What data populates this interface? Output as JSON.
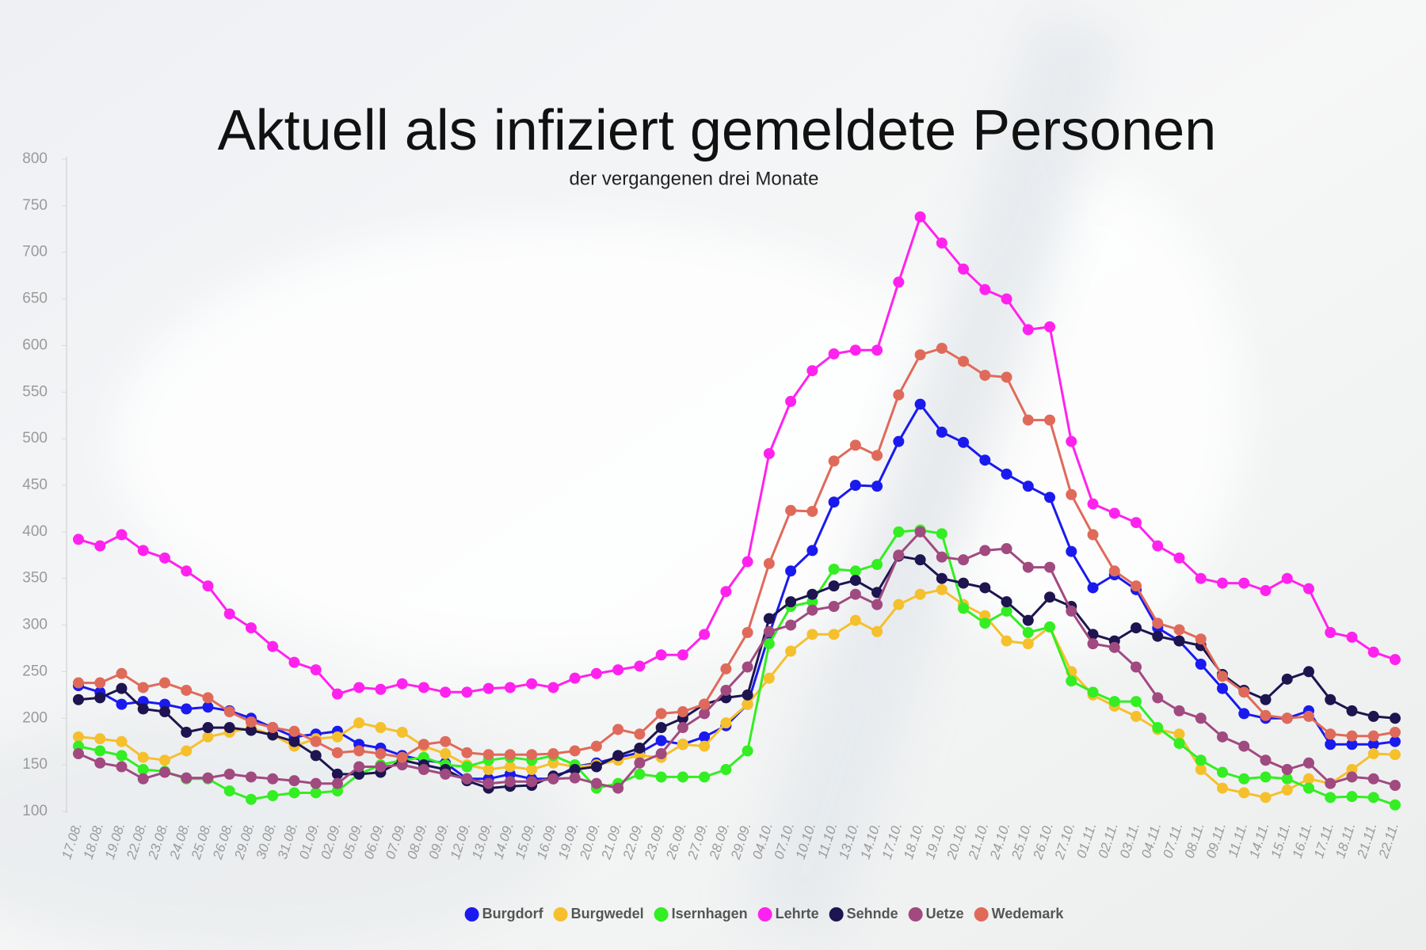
{
  "chart_data": {
    "type": "line",
    "title": "Aktuell als infiziert gemeldete Personen",
    "subtitle": "der vergangenen drei Monate",
    "categories": [
      "17.08.",
      "18.08.",
      "19.08.",
      "22.08.",
      "23.08.",
      "24.08.",
      "25.08.",
      "26.08.",
      "29.08.",
      "30.08.",
      "31.08.",
      "01.09.",
      "02.09.",
      "05.09.",
      "06.09.",
      "07.09.",
      "08.09.",
      "09.09.",
      "12.09.",
      "13.09.",
      "14.09.",
      "15.09.",
      "16.09.",
      "19.09.",
      "20.09.",
      "21.09.",
      "22.09.",
      "23.09.",
      "26.09.",
      "27.09.",
      "28.09.",
      "29.09.",
      "04.10.",
      "07.10.",
      "10.10.",
      "11.10.",
      "13.10.",
      "14.10.",
      "17.10.",
      "18.10.",
      "19.10.",
      "20.10.",
      "21.10.",
      "24.10.",
      "25.10.",
      "26.10.",
      "27.10.",
      "01.11.",
      "02.11.",
      "03.11.",
      "04.11.",
      "07.11.",
      "08.11.",
      "09.11.",
      "11.11.",
      "14.11.",
      "15.11.",
      "16.11.",
      "17.11.",
      "18.11.",
      "21.11.",
      "22.11."
    ],
    "series": [
      {
        "name": "Burgdorf",
        "color": "#1a1aee",
        "values": [
          235,
          228,
          215,
          218,
          215,
          210,
          212,
          208,
          200,
          190,
          180,
          183,
          186,
          172,
          168,
          160,
          155,
          152,
          135,
          135,
          140,
          135,
          135,
          148,
          152,
          158,
          163,
          176,
          172,
          180,
          192,
          215,
          290,
          358,
          380,
          432,
          450,
          449,
          497,
          537,
          507,
          496,
          477,
          462,
          449,
          437,
          379,
          340,
          354,
          338,
          297,
          283,
          258,
          232,
          205,
          200,
          200,
          208,
          172,
          172,
          172,
          175
        ]
      },
      {
        "name": "Burgwedel",
        "color": "#f5c02c",
        "values": [
          180,
          178,
          175,
          158,
          155,
          165,
          180,
          185,
          190,
          182,
          170,
          178,
          180,
          195,
          190,
          185,
          170,
          162,
          150,
          145,
          148,
          145,
          152,
          148,
          150,
          155,
          160,
          158,
          172,
          170,
          195,
          215,
          243,
          272,
          290,
          290,
          305,
          293,
          322,
          333,
          338,
          322,
          310,
          283,
          280,
          298,
          250,
          225,
          213,
          202,
          188,
          183,
          145,
          125,
          120,
          115,
          123,
          135,
          130,
          145,
          162,
          161
        ]
      },
      {
        "name": "Isernhagen",
        "color": "#33ee22",
        "values": [
          170,
          165,
          160,
          145,
          143,
          135,
          135,
          122,
          113,
          117,
          120,
          120,
          122,
          140,
          150,
          155,
          158,
          150,
          148,
          155,
          158,
          155,
          160,
          150,
          125,
          130,
          140,
          137,
          137,
          137,
          145,
          165,
          280,
          320,
          325,
          360,
          358,
          365,
          400,
          402,
          398,
          318,
          302,
          315,
          292,
          298,
          240,
          228,
          218,
          218,
          190,
          173,
          155,
          142,
          135,
          137,
          135,
          125,
          115,
          116,
          115,
          107
        ]
      },
      {
        "name": "Lehrte",
        "color": "#ff22ee",
        "values": [
          392,
          385,
          397,
          380,
          372,
          358,
          342,
          312,
          297,
          277,
          260,
          252,
          226,
          233,
          231,
          237,
          233,
          228,
          228,
          232,
          233,
          237,
          233,
          243,
          248,
          252,
          256,
          268,
          268,
          290,
          336,
          368,
          484,
          540,
          573,
          591,
          595,
          595,
          668,
          738,
          710,
          682,
          660,
          650,
          617,
          620,
          497,
          430,
          420,
          410,
          385,
          372,
          350,
          345,
          345,
          337,
          350,
          339,
          292,
          287,
          271,
          263
        ]
      },
      {
        "name": "Sehnde",
        "color": "#1d1450",
        "values": [
          220,
          222,
          232,
          210,
          207,
          185,
          190,
          190,
          187,
          182,
          175,
          160,
          140,
          140,
          142,
          155,
          150,
          145,
          133,
          125,
          127,
          128,
          138,
          145,
          148,
          160,
          168,
          190,
          200,
          215,
          222,
          225,
          307,
          325,
          333,
          342,
          348,
          335,
          374,
          370,
          350,
          345,
          340,
          325,
          305,
          330,
          320,
          290,
          283,
          297,
          288,
          283,
          278,
          247,
          230,
          220,
          242,
          250,
          220,
          208,
          202,
          200
        ]
      },
      {
        "name": "Uetze",
        "color": "#a04a80",
        "values": [
          162,
          152,
          148,
          135,
          142,
          136,
          136,
          140,
          137,
          135,
          133,
          130,
          130,
          148,
          148,
          150,
          145,
          140,
          135,
          130,
          132,
          132,
          135,
          136,
          130,
          125,
          152,
          162,
          190,
          205,
          230,
          255,
          293,
          300,
          316,
          320,
          333,
          322,
          375,
          400,
          373,
          370,
          380,
          382,
          362,
          362,
          315,
          280,
          276,
          255,
          222,
          208,
          200,
          180,
          170,
          155,
          145,
          152,
          130,
          137,
          135,
          128
        ]
      },
      {
        "name": "Wedemark",
        "color": "#e06a5a",
        "values": [
          238,
          238,
          248,
          233,
          238,
          230,
          222,
          207,
          196,
          190,
          186,
          175,
          163,
          165,
          162,
          158,
          172,
          175,
          163,
          161,
          161,
          161,
          162,
          165,
          170,
          188,
          183,
          205,
          207,
          215,
          253,
          292,
          366,
          423,
          422,
          476,
          493,
          482,
          547,
          590,
          597,
          583,
          568,
          566,
          520,
          520,
          440,
          397,
          358,
          342,
          302,
          295,
          285,
          245,
          228,
          203,
          200,
          202,
          183,
          181,
          181,
          185
        ]
      }
    ],
    "ylim": [
      100,
      800
    ],
    "yticks": [
      100,
      150,
      200,
      250,
      300,
      350,
      400,
      450,
      500,
      550,
      600,
      650,
      700,
      750,
      800
    ],
    "grid": false,
    "legend": "bottom"
  }
}
